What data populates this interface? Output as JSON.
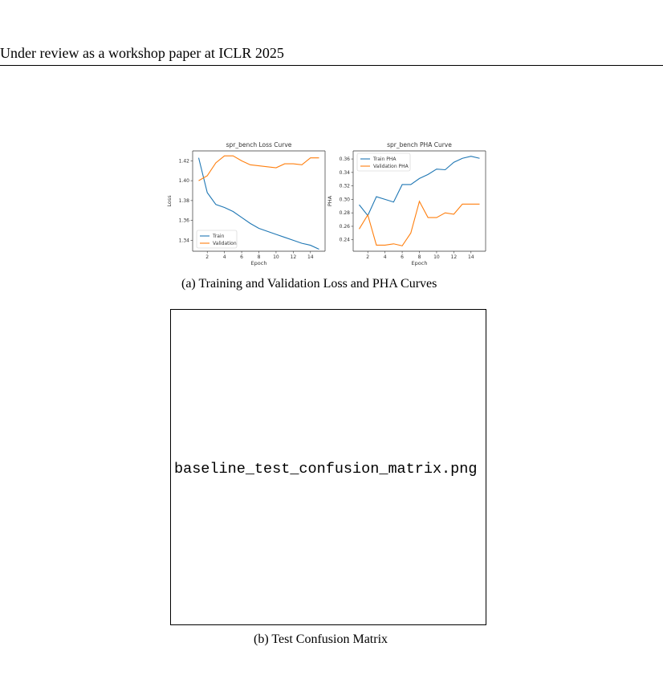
{
  "header": {
    "text": "Under review as a workshop paper at ICLR 2025"
  },
  "figure": {
    "caption_a": "(a) Training and Validation Loss and PHA Curves",
    "caption_b": "(b) Test Confusion Matrix",
    "image_placeholder": "baseline_test_confusion_matrix.png"
  },
  "colors": {
    "series1": "#1f77b4",
    "series2": "#ff7f0e"
  },
  "chart_data": [
    {
      "type": "line",
      "title": "spr_bench Loss Curve",
      "xlabel": "Epoch",
      "ylabel": "Loss",
      "x": [
        1,
        2,
        3,
        4,
        5,
        6,
        7,
        8,
        9,
        10,
        11,
        12,
        13,
        14,
        15
      ],
      "xticks": [
        2,
        4,
        6,
        8,
        10,
        12,
        14
      ],
      "yticks": [
        1.34,
        1.36,
        1.38,
        1.4,
        1.42
      ],
      "xlim": [
        0.3,
        15.7
      ],
      "ylim": [
        1.329,
        1.43
      ],
      "legend": "lower-left",
      "grid": false,
      "series": [
        {
          "name": "Train",
          "values": [
            1.423,
            1.388,
            1.376,
            1.373,
            1.369,
            1.363,
            1.357,
            1.352,
            1.349,
            1.346,
            1.343,
            1.34,
            1.337,
            1.335,
            1.331
          ]
        },
        {
          "name": "Validation",
          "values": [
            1.4,
            1.405,
            1.418,
            1.425,
            1.425,
            1.42,
            1.416,
            1.415,
            1.414,
            1.413,
            1.417,
            1.417,
            1.416,
            1.423,
            1.423
          ]
        }
      ]
    },
    {
      "type": "line",
      "title": "spr_bench PHA Curve",
      "xlabel": "Epoch",
      "ylabel": "PHA",
      "x": [
        1,
        2,
        3,
        4,
        5,
        6,
        7,
        8,
        9,
        10,
        11,
        12,
        13,
        14,
        15
      ],
      "xticks": [
        2,
        4,
        6,
        8,
        10,
        12,
        14
      ],
      "yticks": [
        0.24,
        0.26,
        0.28,
        0.3,
        0.32,
        0.34,
        0.36
      ],
      "xlim": [
        0.3,
        15.7
      ],
      "ylim": [
        0.223,
        0.372
      ],
      "legend": "top-left",
      "grid": false,
      "series": [
        {
          "name": "Train PHA",
          "values": [
            0.292,
            0.276,
            0.304,
            0.3,
            0.296,
            0.322,
            0.322,
            0.331,
            0.337,
            0.345,
            0.344,
            0.355,
            0.361,
            0.364,
            0.361
          ]
        },
        {
          "name": "Validation PHA",
          "values": [
            0.256,
            0.277,
            0.232,
            0.232,
            0.234,
            0.231,
            0.25,
            0.297,
            0.273,
            0.273,
            0.28,
            0.278,
            0.293,
            0.293,
            0.293
          ]
        }
      ]
    }
  ]
}
